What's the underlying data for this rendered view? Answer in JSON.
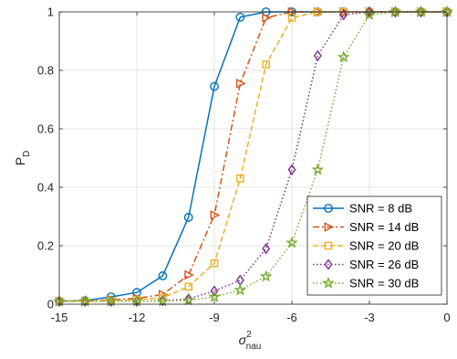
{
  "chart_data": {
    "type": "line",
    "title": "",
    "xlabel": "σ",
    "xlabel_sup": "2",
    "xlabel_sub": "nau",
    "ylabel": "P",
    "ylabel_sub": "D",
    "xlim": [
      -15,
      0
    ],
    "ylim": [
      0,
      1
    ],
    "xticks": [
      -15,
      -12,
      -9,
      -6,
      -3,
      0
    ],
    "yticks": [
      0,
      0.2,
      0.4,
      0.6,
      0.8,
      1
    ],
    "xtick_labels": [
      "-15",
      "-12",
      "-9",
      "-6",
      "-3",
      "0"
    ],
    "ytick_labels": [
      "0",
      "0.2",
      "0.4",
      "0.6",
      "0.8",
      "1"
    ],
    "grid": true,
    "legend_position": "bottom-right",
    "x": [
      -15,
      -14,
      -13,
      -12,
      -11,
      -10,
      -9,
      -8,
      -7,
      -6,
      -5,
      -4,
      -3,
      -2,
      -1,
      0
    ],
    "series": [
      {
        "name": "SNR = 8 dB",
        "color": "#0072BD",
        "dash": "solid",
        "marker": "circle",
        "values": [
          0.01,
          0.012,
          0.025,
          0.04,
          0.097,
          0.297,
          0.745,
          0.982,
          1,
          1,
          1,
          1,
          1,
          1,
          1,
          1
        ]
      },
      {
        "name": "SNR = 14 dB",
        "color": "#D95319",
        "dash": "dashdot",
        "marker": "triangle-right",
        "values": [
          0.01,
          0.01,
          0.015,
          0.02,
          0.033,
          0.1,
          0.305,
          0.755,
          0.98,
          1,
          1,
          1,
          1,
          1,
          1,
          1
        ]
      },
      {
        "name": "SNR = 20 dB",
        "color": "#EDB120",
        "dash": "dashed",
        "marker": "square",
        "values": [
          0.01,
          0.01,
          0.012,
          0.015,
          0.022,
          0.06,
          0.14,
          0.43,
          0.82,
          0.98,
          1,
          1,
          1,
          1,
          1,
          1
        ]
      },
      {
        "name": "SNR = 26 dB",
        "color": "#7E2F8E",
        "dash": "dotted",
        "marker": "diamond",
        "values": [
          0.01,
          0.01,
          0.01,
          0.01,
          0.012,
          0.018,
          0.045,
          0.082,
          0.19,
          0.46,
          0.85,
          0.99,
          1,
          1,
          1,
          1
        ]
      },
      {
        "name": "SNR = 30 dB",
        "color": "#77AC30",
        "dash": "dotted",
        "marker": "star",
        "values": [
          0.01,
          0.01,
          0.01,
          0.01,
          0.01,
          0.013,
          0.025,
          0.048,
          0.095,
          0.21,
          0.46,
          0.845,
          0.99,
          1,
          1,
          1
        ]
      }
    ]
  }
}
